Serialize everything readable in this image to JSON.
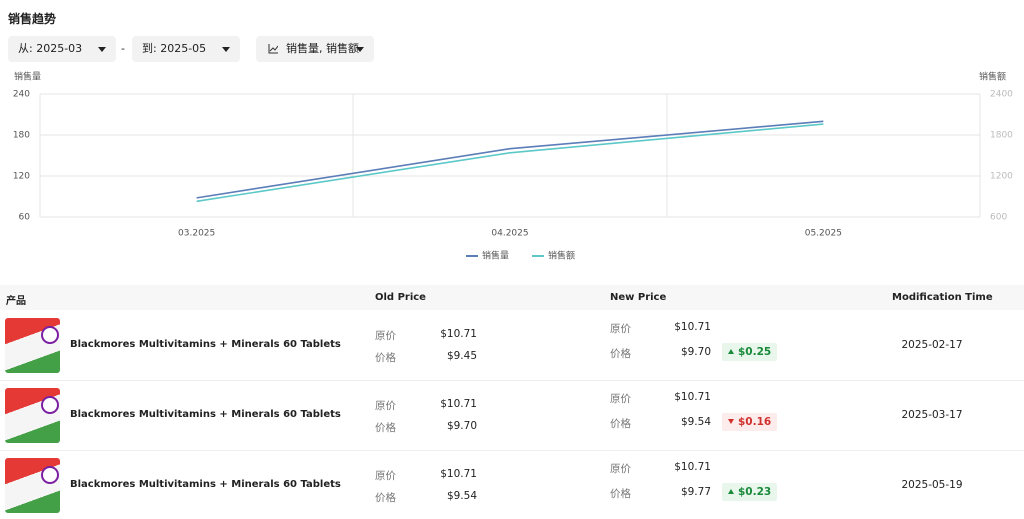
{
  "header": {
    "title": "销售趋势"
  },
  "filters": {
    "from": "从: 2025-03",
    "separator": "-",
    "to": "到: 2025-05",
    "metrics": "销售量, 销售额"
  },
  "chart_data": {
    "type": "line",
    "y_label": "销售量",
    "y2_label": "销售额",
    "categories": [
      "03.2025",
      "04.2025",
      "05.2025"
    ],
    "series": [
      {
        "name": "销售量",
        "color": "#5b7db8",
        "values": [
          88,
          160,
          200
        ]
      },
      {
        "name": "销售额",
        "color": "#5cc8c8",
        "axis": "y2",
        "values": [
          830,
          1540,
          1960
        ]
      }
    ],
    "ylim": [
      60,
      240
    ],
    "yticks": [
      60,
      120,
      180,
      240
    ],
    "y2lim": [
      600,
      2400
    ],
    "y2ticks": [
      600,
      1200,
      1800,
      2400
    ],
    "grid": true,
    "legend": "bottom"
  },
  "table": {
    "columns": [
      "产品",
      "Old Price",
      "New Price",
      "Modification Time"
    ],
    "rows": [
      {
        "product": "Blackmores Multivitamins + Minerals 60 Tablets",
        "old_original_label": "原价",
        "old_original": "$10.71",
        "old_price_label": "价格",
        "old_price": "$9.45",
        "new_original_label": "原价",
        "new_original": "$10.71",
        "new_price_label": "价格",
        "new_price": "$9.70",
        "change": "$0.25",
        "trend": "up",
        "time": "2025-02-17"
      },
      {
        "product": "Blackmores Multivitamins + Minerals 60 Tablets",
        "old_original_label": "原价",
        "old_original": "$10.71",
        "old_price_label": "价格",
        "old_price": "$9.70",
        "new_original_label": "原价",
        "new_original": "$10.71",
        "new_price_label": "价格",
        "new_price": "$9.54",
        "change": "$0.16",
        "trend": "down",
        "time": "2025-03-17"
      },
      {
        "product": "Blackmores Multivitamins + Minerals 60 Tablets",
        "old_original_label": "原价",
        "old_original": "$10.71",
        "old_price_label": "价格",
        "old_price": "$9.54",
        "new_original_label": "原价",
        "new_original": "$10.71",
        "new_price_label": "价格",
        "new_price": "$9.77",
        "change": "$0.23",
        "trend": "up",
        "time": "2025-05-19"
      }
    ]
  }
}
